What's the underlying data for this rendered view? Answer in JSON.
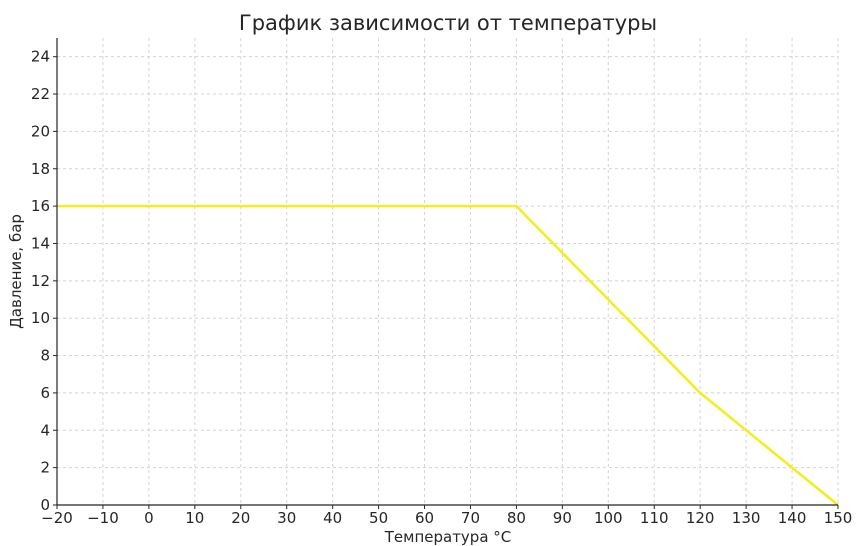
{
  "chart_data": {
    "type": "line",
    "title": "График зависимости от температуры",
    "xlabel": "Температура °C",
    "ylabel": "Давление, бар",
    "xlim": [
      -20,
      150
    ],
    "ylim": [
      0,
      25
    ],
    "xticks": [
      -20,
      -10,
      0,
      10,
      20,
      30,
      40,
      50,
      60,
      70,
      80,
      90,
      100,
      110,
      120,
      130,
      140,
      150
    ],
    "xtick_labels": [
      "−20",
      "−10",
      "0",
      "10",
      "20",
      "30",
      "40",
      "50",
      "60",
      "70",
      "80",
      "90",
      "100",
      "110",
      "120",
      "130",
      "140",
      "150"
    ],
    "yticks": [
      0,
      2,
      4,
      6,
      8,
      10,
      12,
      14,
      16,
      18,
      20,
      22,
      24
    ],
    "ytick_labels": [
      "0",
      "2",
      "4",
      "6",
      "8",
      "10",
      "12",
      "14",
      "16",
      "18",
      "20",
      "22",
      "24"
    ],
    "grid": true,
    "series": [
      {
        "x": [
          -20,
          80,
          120,
          150
        ],
        "y": [
          16,
          16,
          6,
          0
        ],
        "color": "#f2ee1f"
      }
    ]
  }
}
